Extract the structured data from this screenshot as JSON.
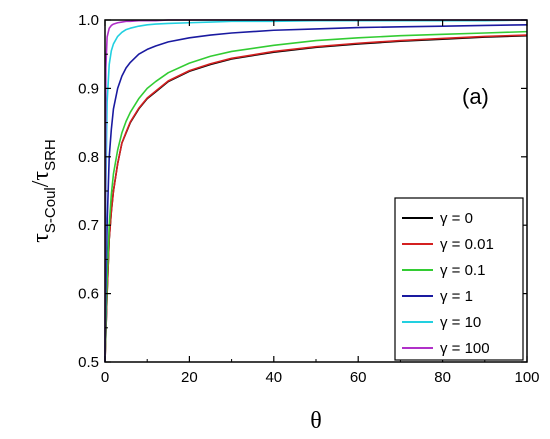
{
  "chart_data": {
    "type": "line",
    "panel_label": "(a)",
    "xlabel": "θ",
    "ylabel": {
      "main": "τ",
      "sub1": "S-Coul",
      "slash": "/",
      "main2": "τ",
      "sub2": "SRH"
    },
    "xlim": [
      0,
      100
    ],
    "ylim": [
      0.5,
      1.0
    ],
    "x_ticks": [
      0,
      20,
      40,
      60,
      80,
      100
    ],
    "x_tick_labels": [
      "0",
      "20",
      "40",
      "60",
      "80",
      "100"
    ],
    "y_ticks": [
      0.5,
      0.6,
      0.7,
      0.8,
      0.9,
      1.0
    ],
    "y_tick_labels": [
      "0.5",
      "0.6",
      "0.7",
      "0.8",
      "0.9",
      "1.0"
    ],
    "grid": false,
    "legend_position": "bottom-right",
    "x": [
      0,
      0.2,
      0.5,
      1,
      1.5,
      2,
      3,
      4,
      5,
      6,
      8,
      10,
      12,
      15,
      20,
      25,
      30,
      40,
      50,
      60,
      70,
      80,
      90,
      100
    ],
    "series": [
      {
        "name": "γ = 0",
        "color": "#000000",
        "values": [
          0.5,
          0.54,
          0.6,
          0.68,
          0.72,
          0.75,
          0.79,
          0.82,
          0.835,
          0.85,
          0.87,
          0.885,
          0.895,
          0.91,
          0.925,
          0.935,
          0.943,
          0.953,
          0.96,
          0.965,
          0.969,
          0.972,
          0.975,
          0.977
        ]
      },
      {
        "name": "γ = 0.01",
        "color": "#d42020",
        "values": [
          0.5,
          0.54,
          0.6,
          0.68,
          0.72,
          0.75,
          0.79,
          0.82,
          0.836,
          0.851,
          0.871,
          0.886,
          0.896,
          0.911,
          0.926,
          0.936,
          0.944,
          0.954,
          0.961,
          0.966,
          0.97,
          0.973,
          0.976,
          0.978
        ]
      },
      {
        "name": "γ = 0.1",
        "color": "#33cc33",
        "values": [
          0.5,
          0.55,
          0.62,
          0.7,
          0.745,
          0.775,
          0.81,
          0.835,
          0.852,
          0.865,
          0.885,
          0.9,
          0.91,
          0.923,
          0.937,
          0.947,
          0.954,
          0.963,
          0.97,
          0.974,
          0.977,
          0.979,
          0.981,
          0.983
        ]
      },
      {
        "name": "γ = 1",
        "color": "#1a1aa0",
        "values": [
          0.5,
          0.6,
          0.7,
          0.8,
          0.84,
          0.87,
          0.9,
          0.918,
          0.93,
          0.938,
          0.95,
          0.957,
          0.962,
          0.968,
          0.974,
          0.978,
          0.981,
          0.985,
          0.987,
          0.989,
          0.99,
          0.991,
          0.992,
          0.993
        ]
      },
      {
        "name": "γ = 10",
        "color": "#22d0e0",
        "values": [
          0.5,
          0.75,
          0.88,
          0.935,
          0.955,
          0.965,
          0.976,
          0.982,
          0.986,
          0.988,
          0.991,
          0.993,
          0.994,
          0.995,
          0.996,
          0.997,
          0.998,
          0.998,
          0.999,
          0.999,
          0.999,
          0.999,
          0.999,
          1.0
        ]
      },
      {
        "name": "γ = 100",
        "color": "#b030c8",
        "values": [
          0.5,
          0.93,
          0.975,
          0.988,
          0.992,
          0.994,
          0.996,
          0.997,
          0.998,
          0.998,
          0.999,
          0.999,
          0.999,
          1.0,
          1.0,
          1.0,
          1.0,
          1.0,
          1.0,
          1.0,
          1.0,
          1.0,
          1.0,
          1.0
        ]
      }
    ]
  }
}
